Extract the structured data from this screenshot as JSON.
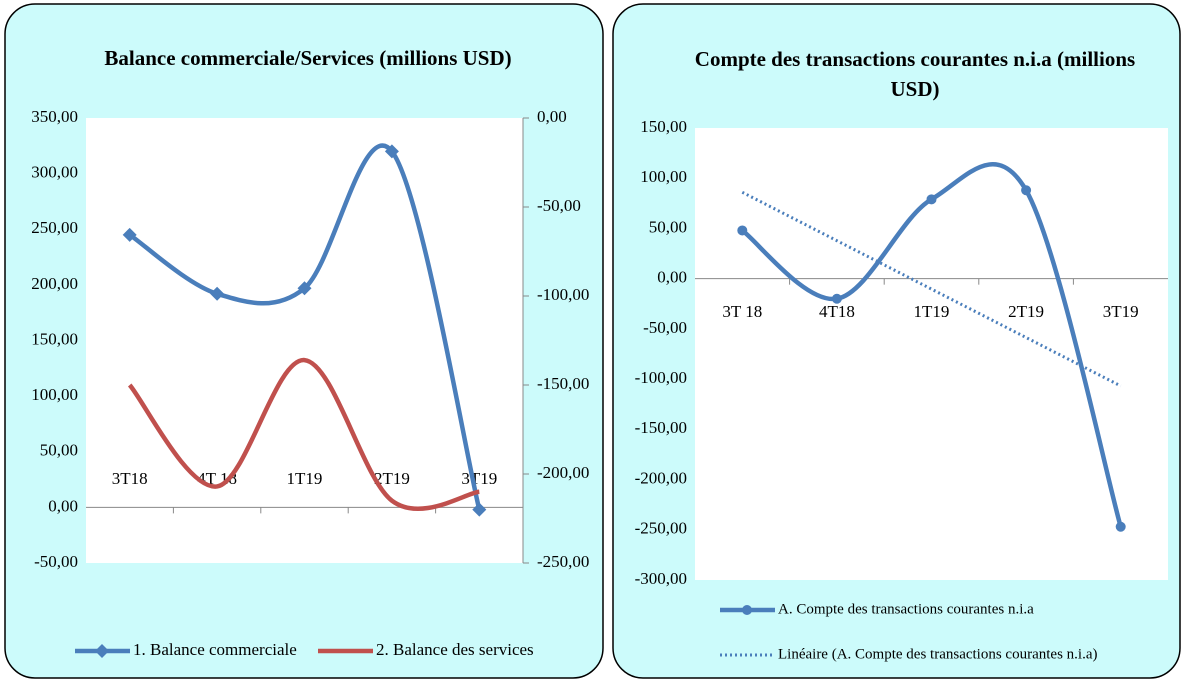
{
  "chart_data": [
    {
      "type": "line",
      "title": "Balance commerciale/Services (millions  USD)",
      "categories": [
        "3T18",
        "4T 18",
        "1T19",
        "2T19",
        "3T19"
      ],
      "series": [
        {
          "name": "1. Balance commerciale",
          "color": "#4a7ebb",
          "marker": "diamond",
          "values": [
            245,
            192,
            197,
            320,
            -2
          ]
        },
        {
          "name": "2. Balance des services",
          "color": "#c0504d",
          "axis": "y2",
          "values": [
            -150,
            -207,
            -136,
            -215,
            -210
          ]
        }
      ],
      "ylim": [
        -50,
        350
      ],
      "yticks": [
        {
          "value": -50,
          "label": "-50,00"
        },
        {
          "value": 0,
          "label": "0,00"
        },
        {
          "value": 50,
          "label": "50,00"
        },
        {
          "value": 100,
          "label": "100,00"
        },
        {
          "value": 150,
          "label": "150,00"
        },
        {
          "value": 200,
          "label": "200,00"
        },
        {
          "value": 250,
          "label": "250,00"
        },
        {
          "value": 300,
          "label": "300,00"
        },
        {
          "value": 350,
          "label": "350,00"
        }
      ],
      "y2lim": [
        -250,
        0
      ],
      "y2ticks": [
        {
          "value": -250,
          "label": "-250,00"
        },
        {
          "value": -200,
          "label": "-200,00"
        },
        {
          "value": -150,
          "label": "-150,00"
        },
        {
          "value": -100,
          "label": "-100,00"
        },
        {
          "value": -50,
          "label": "-50,00"
        },
        {
          "value": 0,
          "label": "0,00"
        }
      ],
      "legend": "bottom"
    },
    {
      "type": "line",
      "title": "Compte des transactions courantes n.i.a (millions USD)",
      "categories": [
        "3T 18",
        "4T18",
        "1T19",
        "2T19",
        "3T19"
      ],
      "series": [
        {
          "name": "A. Compte des transactions courantes n.i.a",
          "color": "#4a7ebb",
          "marker": "circle",
          "values": [
            48,
            -20,
            79,
            88,
            -247
          ]
        },
        {
          "name": "Linéaire (A. Compte des transactions courantes n.i.a)",
          "color": "#4a7ebb",
          "dash": true,
          "values": [
            86,
            37.8,
            -10.4,
            -58.6,
            -106.8
          ]
        }
      ],
      "ylim": [
        -300,
        150
      ],
      "yticks": [
        {
          "value": -300,
          "label": "-300,00"
        },
        {
          "value": -250,
          "label": "-250,00"
        },
        {
          "value": -200,
          "label": "-200,00"
        },
        {
          "value": -150,
          "label": "-150,00"
        },
        {
          "value": -100,
          "label": "-100,00"
        },
        {
          "value": -50,
          "label": "-50,00"
        },
        {
          "value": 0,
          "label": "0,00"
        },
        {
          "value": 50,
          "label": "50,00"
        },
        {
          "value": 100,
          "label": "100,00"
        },
        {
          "value": 150,
          "label": "150,00"
        }
      ],
      "legend": "bottom-left"
    }
  ]
}
